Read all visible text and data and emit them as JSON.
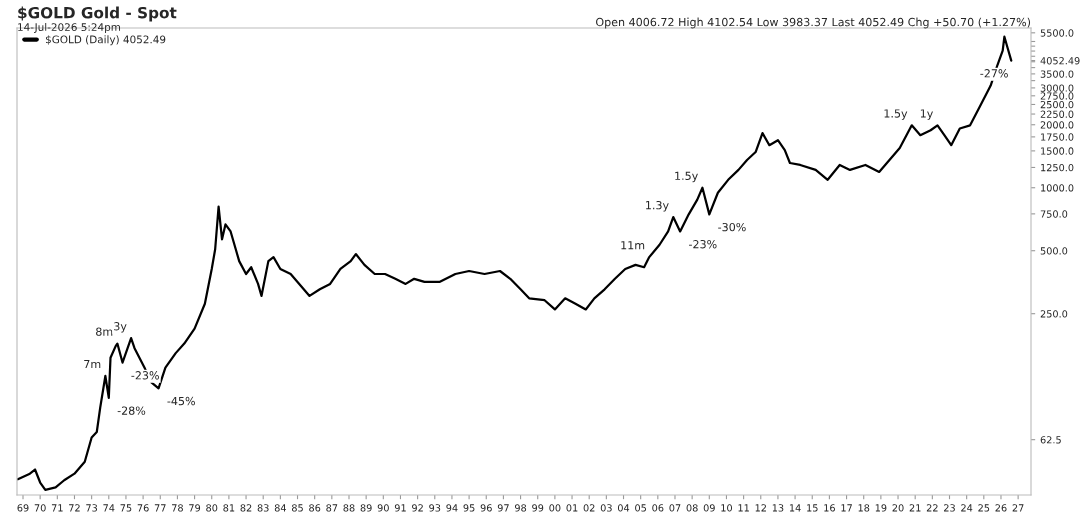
{
  "chart_data": {
    "type": "line",
    "title": "$GOLD Gold - Spot",
    "subtitle": "14-Jul-2026 5:24pm",
    "x": [
      1968.7,
      1969.4,
      1969.7,
      1970.0,
      1970.3,
      1970.9,
      1971.4,
      1972.0,
      1972.6,
      1973.0,
      1973.3,
      1973.5,
      1973.8,
      1974.0,
      1974.1,
      1974.4,
      1974.5,
      1974.8,
      1975.3,
      1975.5,
      1976.1,
      1976.5,
      1976.9,
      1977.3,
      1977.9,
      1978.4,
      1979.0,
      1979.6,
      1980.0,
      1980.2,
      1980.4,
      1980.6,
      1980.8,
      1981.1,
      1981.4,
      1981.6,
      1982.0,
      1982.3,
      1982.7,
      1982.9,
      1983.3,
      1983.6,
      1984.0,
      1984.6,
      1985.1,
      1985.7,
      1986.3,
      1986.9,
      1987.5,
      1988.1,
      1988.4,
      1988.9,
      1989.5,
      1990.1,
      1990.7,
      1991.3,
      1991.8,
      1992.4,
      1993.3,
      1994.2,
      1995.0,
      1995.9,
      1996.8,
      1997.4,
      1998.0,
      1998.5,
      1999.4,
      2000.0,
      2000.6,
      2001.2,
      2001.8,
      2002.3,
      2002.9,
      2003.5,
      2004.1,
      2004.7,
      2005.2,
      2005.5,
      2006.1,
      2006.6,
      2006.9,
      2007.3,
      2007.8,
      2008.3,
      2008.6,
      2009.0,
      2009.5,
      2010.1,
      2010.7,
      2011.2,
      2011.7,
      2012.1,
      2012.5,
      2013.0,
      2013.4,
      2013.7,
      2014.3,
      2015.2,
      2015.9,
      2016.6,
      2017.2,
      2018.1,
      2018.9,
      2019.5,
      2020.1,
      2020.8,
      2021.3,
      2021.9,
      2022.3,
      2022.7,
      2023.1,
      2023.6,
      2024.2,
      2024.8,
      2025.4,
      2025.8,
      2026.1,
      2026.2,
      2026.4,
      2026.6
    ],
    "series": [
      {
        "name": "$GOLD (Daily) 4052.49",
        "color": "#000000",
        "values": [
          40.4,
          43,
          45,
          39,
          36,
          37,
          40,
          43,
          49,
          64,
          68,
          89,
          126,
          99,
          154,
          175,
          180,
          146,
          191,
          171,
          137,
          117,
          110,
          138,
          162,
          180,
          212,
          279,
          409,
          508,
          813,
          567,
          668,
          618,
          508,
          446,
          387,
          417,
          347,
          304,
          446,
          466,
          409,
          387,
          347,
          304,
          327,
          347,
          409,
          446,
          482,
          428,
          387,
          387,
          367,
          347,
          367,
          355,
          355,
          387,
          400,
          387,
          400,
          367,
          327,
          296,
          290,
          262,
          296,
          279,
          262,
          296,
          327,
          367,
          409,
          428,
          417,
          466,
          534,
          618,
          724,
          618,
          746,
          877,
          1000,
          746,
          946,
          1091,
          1217,
          1357,
          1481,
          1824,
          1597,
          1687,
          1513,
          1313,
          1285,
          1217,
          1091,
          1285,
          1217,
          1285,
          1190,
          1357,
          1547,
          1987,
          1782,
          1882,
          1987,
          1782,
          1597,
          1920,
          1987,
          2472,
          3077,
          3870,
          4516,
          5270,
          4615,
          4052.49
        ]
      }
    ],
    "log": "y",
    "grid": false,
    "legend": "top left",
    "marker": "none",
    "line_style": "solid",
    "xlim": [
      1968.65,
      2027.75
    ],
    "xticks": [
      {
        "value": 1969,
        "label": "69"
      },
      {
        "value": 1970,
        "label": "70"
      },
      {
        "value": 1971,
        "label": "71"
      },
      {
        "value": 1972,
        "label": "72"
      },
      {
        "value": 1973,
        "label": "73"
      },
      {
        "value": 1974,
        "label": "74"
      },
      {
        "value": 1975,
        "label": "75"
      },
      {
        "value": 1976,
        "label": "76"
      },
      {
        "value": 1977,
        "label": "77"
      },
      {
        "value": 1978,
        "label": "78"
      },
      {
        "value": 1979,
        "label": "79"
      },
      {
        "value": 1980,
        "label": "80"
      },
      {
        "value": 1981,
        "label": "81"
      },
      {
        "value": 1982,
        "label": "82"
      },
      {
        "value": 1983,
        "label": "83"
      },
      {
        "value": 1984,
        "label": "84"
      },
      {
        "value": 1985,
        "label": "85"
      },
      {
        "value": 1986,
        "label": "86"
      },
      {
        "value": 1987,
        "label": "87"
      },
      {
        "value": 1988,
        "label": "88"
      },
      {
        "value": 1989,
        "label": "89"
      },
      {
        "value": 1990,
        "label": "90"
      },
      {
        "value": 1991,
        "label": "91"
      },
      {
        "value": 1992,
        "label": "92"
      },
      {
        "value": 1993,
        "label": "93"
      },
      {
        "value": 1994,
        "label": "94"
      },
      {
        "value": 1995,
        "label": "95"
      },
      {
        "value": 1996,
        "label": "96"
      },
      {
        "value": 1997,
        "label": "97"
      },
      {
        "value": 1998,
        "label": "98"
      },
      {
        "value": 1999,
        "label": "99"
      },
      {
        "value": 2000,
        "label": "00"
      },
      {
        "value": 2001,
        "label": "01"
      },
      {
        "value": 2002,
        "label": "02"
      },
      {
        "value": 2003,
        "label": "03"
      },
      {
        "value": 2004,
        "label": "04"
      },
      {
        "value": 2005,
        "label": "05"
      },
      {
        "value": 2006,
        "label": "06"
      },
      {
        "value": 2007,
        "label": "07"
      },
      {
        "value": 2008,
        "label": "08"
      },
      {
        "value": 2009,
        "label": "09"
      },
      {
        "value": 2010,
        "label": "10"
      },
      {
        "value": 2011,
        "label": "11"
      },
      {
        "value": 2012,
        "label": "12"
      },
      {
        "value": 2013,
        "label": "13"
      },
      {
        "value": 2014,
        "label": "14"
      },
      {
        "value": 2015,
        "label": "15"
      },
      {
        "value": 2016,
        "label": "16"
      },
      {
        "value": 2017,
        "label": "17"
      },
      {
        "value": 2018,
        "label": "18"
      },
      {
        "value": 2019,
        "label": "19"
      },
      {
        "value": 2020,
        "label": "20"
      },
      {
        "value": 2021,
        "label": "21"
      },
      {
        "value": 2022,
        "label": "22"
      },
      {
        "value": 2023,
        "label": "23"
      },
      {
        "value": 2024,
        "label": "24"
      },
      {
        "value": 2025,
        "label": "25"
      },
      {
        "value": 2026,
        "label": "26"
      },
      {
        "value": 2027,
        "label": "27"
      }
    ],
    "ylim": [
      34,
      5800
    ],
    "yticks": [
      {
        "value": 62.5,
        "label": "62.5"
      },
      {
        "value": 250,
        "label": "250.0"
      },
      {
        "value": 500,
        "label": "500.0"
      },
      {
        "value": 750,
        "label": "750.0"
      },
      {
        "value": 1000,
        "label": "1000.0"
      },
      {
        "value": 1250,
        "label": "1250.0"
      },
      {
        "value": 1500,
        "label": "1500.0"
      },
      {
        "value": 1750,
        "label": "1750.0"
      },
      {
        "value": 2000,
        "label": "2000.0"
      },
      {
        "value": 2250,
        "label": "2250.0"
      },
      {
        "value": 2500,
        "label": "2500.0"
      },
      {
        "value": 2750,
        "label": "2750.0"
      },
      {
        "value": 3000,
        "label": "3000.0"
      },
      {
        "value": 3250,
        "label": null
      },
      {
        "value": 3500,
        "label": "3500.0"
      },
      {
        "value": 3750,
        "label": null
      },
      {
        "value": 4000,
        "label": null
      },
      {
        "value": 4250,
        "label": null
      },
      {
        "value": 4500,
        "label": null
      },
      {
        "value": 4750,
        "label": null
      },
      {
        "value": 5000,
        "label": null
      },
      {
        "value": 5500,
        "label": "5500.0"
      },
      {
        "value": 4052.49,
        "label": "4052.49"
      }
    ],
    "annotations": [
      "Open 4006.72 High 4102.54 Low 3983.37 Last 4052.49 Chg +50.70 (+1.27%)",
      {
        "text": "7m",
        "x": 1973.8,
        "y": 126
      },
      {
        "text": "8m",
        "x": 1974.5,
        "y": 180
      },
      {
        "text": "3y",
        "x": 1975.3,
        "y": 191
      },
      {
        "text": "-28%",
        "x": 1974.0,
        "y": 99
      },
      {
        "text": "-23%",
        "x": 1974.8,
        "y": 146
      },
      {
        "text": "-45%",
        "x": 1976.9,
        "y": 110
      },
      {
        "text": "11m",
        "x": 2005.5,
        "y": 466
      },
      {
        "text": "-23%",
        "x": 2007.3,
        "y": 618
      },
      {
        "text": "1.3y",
        "x": 2006.9,
        "y": 724
      },
      {
        "text": "1.5y",
        "x": 2008.6,
        "y": 1000
      },
      {
        "text": "-30%",
        "x": 2009.0,
        "y": 746
      },
      {
        "text": "1.5y",
        "x": 2020.8,
        "y": 1987
      },
      {
        "text": "1y",
        "x": 2022.3,
        "y": 1987
      },
      {
        "text": "-27%",
        "x": 2026.6,
        "y": 4052.49
      }
    ]
  }
}
